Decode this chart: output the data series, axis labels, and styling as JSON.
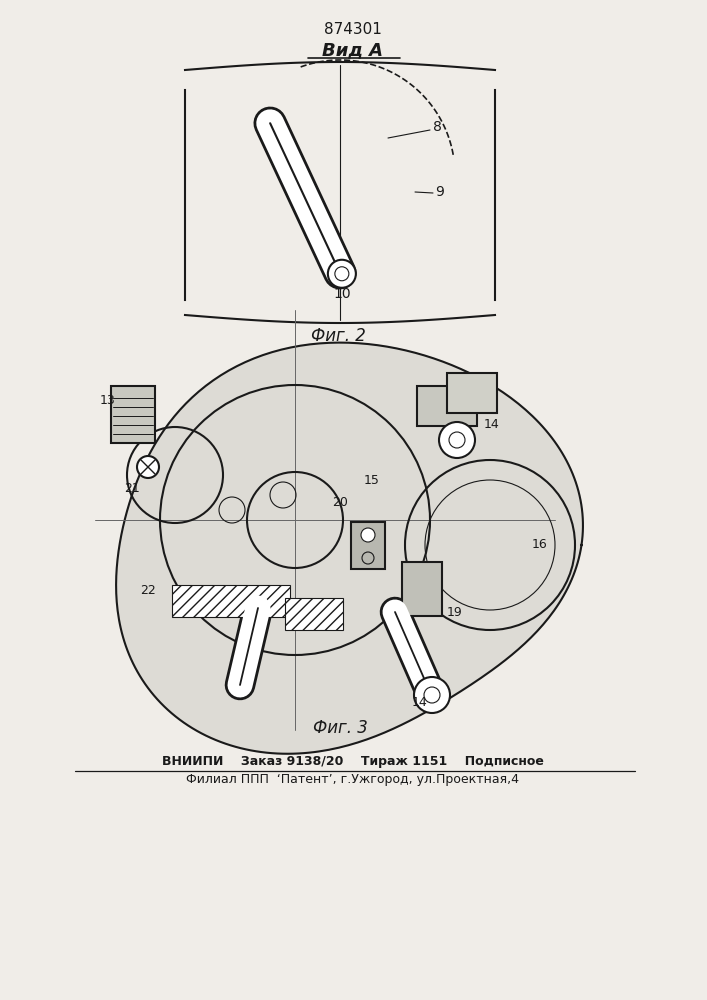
{
  "title_number": "874301",
  "view_label": "Вид А",
  "fig2_label": "Фиг. 2",
  "fig3_label": "Фиг. 3",
  "footer_line1": "ВНИИПИ    Заказ 9138/20    Тираж 1151    Подписное",
  "footer_line2": "Филиал ППП  ‘Патент’, г.Ужгород, ул.Проектная,4",
  "bg_color": "#f0ede8",
  "line_color": "#1a1a1a",
  "labels_fig2": [
    "8",
    "9",
    "10"
  ],
  "labels_fig3": [
    "13",
    "14",
    "14",
    "15",
    "16",
    "19",
    "20",
    "21",
    "22"
  ]
}
